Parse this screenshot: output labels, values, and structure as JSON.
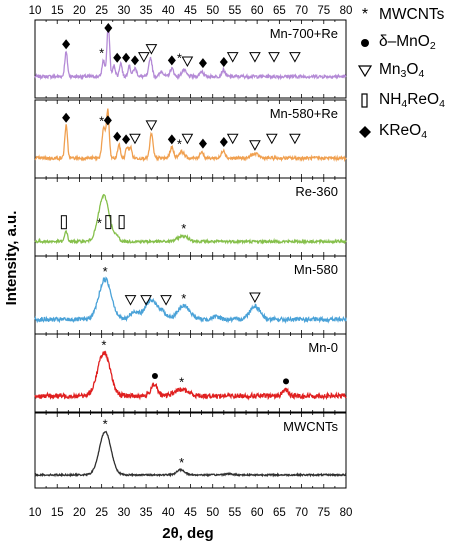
{
  "chart_data": {
    "type": "line",
    "xlabel": "2θ, deg",
    "ylabel": "Intensity, a.u.",
    "xlim": [
      10,
      80
    ],
    "x_ticks": [
      10,
      15,
      20,
      25,
      30,
      35,
      40,
      45,
      50,
      55,
      60,
      65,
      70,
      75,
      80
    ],
    "legend": [
      {
        "symbol": "*",
        "shape": "asterisk",
        "text": "MWCNTs"
      },
      {
        "symbol": "●",
        "shape": "circle",
        "text": "δ–MnO",
        "sub": "2"
      },
      {
        "symbol": "▽",
        "shape": "triangle-down",
        "text": "Mn",
        "sub": "3",
        "text2": "O",
        "sub2": "4"
      },
      {
        "symbol": "▯",
        "shape": "rect",
        "text": "NH",
        "sub": "4",
        "text2": "ReO",
        "sub2": "4"
      },
      {
        "symbol": "◆",
        "shape": "diamond",
        "text": "KReO",
        "sub": "4"
      }
    ],
    "panels": [
      {
        "name": "Mn-700+Re",
        "color": "#b48ad6",
        "baseline": 0.25,
        "noise": 0.03,
        "peaks": [
          [
            17.0,
            0.45,
            0.3
          ],
          [
            25.4,
            0.3,
            0.3
          ],
          [
            26.5,
            0.95,
            0.3
          ],
          [
            27.8,
            0.2,
            0.3
          ],
          [
            29.3,
            0.25,
            0.3
          ],
          [
            31.2,
            0.2,
            0.3
          ],
          [
            32.5,
            0.15,
            0.4
          ],
          [
            36.0,
            0.35,
            0.35
          ],
          [
            38.5,
            0.1,
            0.4
          ],
          [
            40.8,
            0.15,
            0.4
          ],
          [
            43.5,
            0.12,
            0.5
          ],
          [
            47.5,
            0.1,
            0.4
          ],
          [
            52.4,
            0.12,
            0.4
          ]
        ],
        "markers": [
          [
            17,
            "diamond"
          ],
          [
            25,
            "asterisk"
          ],
          [
            26.5,
            "diamond"
          ],
          [
            28.5,
            "diamond"
          ],
          [
            30.5,
            "diamond"
          ],
          [
            32.5,
            "diamond"
          ],
          [
            34.5,
            "triangle-down"
          ],
          [
            36.2,
            "triangle-down"
          ],
          [
            40.8,
            "diamond"
          ],
          [
            42.5,
            "asterisk"
          ],
          [
            44.3,
            "triangle-down"
          ],
          [
            47.8,
            "diamond"
          ],
          [
            52.5,
            "diamond"
          ],
          [
            54.5,
            "triangle-down"
          ],
          [
            59.5,
            "triangle-down"
          ],
          [
            63.8,
            "triangle-down"
          ],
          [
            68.5,
            "triangle-down"
          ]
        ]
      },
      {
        "name": "Mn-580+Re",
        "color": "#f0a050",
        "baseline": 0.22,
        "noise": 0.03,
        "peaks": [
          [
            17.0,
            0.6,
            0.3
          ],
          [
            25.5,
            0.55,
            0.4
          ],
          [
            26.4,
            0.85,
            0.3
          ],
          [
            28.9,
            0.25,
            0.3
          ],
          [
            30.7,
            0.2,
            0.3
          ],
          [
            31.5,
            0.2,
            0.3
          ],
          [
            36.2,
            0.45,
            0.35
          ],
          [
            40.8,
            0.2,
            0.4
          ],
          [
            43.0,
            0.12,
            0.6
          ],
          [
            47.5,
            0.12,
            0.4
          ],
          [
            52.4,
            0.15,
            0.4
          ],
          [
            59.5,
            0.08,
            0.8
          ]
        ],
        "markers": [
          [
            17,
            "diamond"
          ],
          [
            25,
            "asterisk"
          ],
          [
            26.4,
            "diamond"
          ],
          [
            28.5,
            "diamond"
          ],
          [
            30.5,
            "diamond"
          ],
          [
            32.5,
            "triangle-down"
          ],
          [
            36.2,
            "triangle-down"
          ],
          [
            40.8,
            "diamond"
          ],
          [
            42.5,
            "asterisk"
          ],
          [
            44.3,
            "triangle-down"
          ],
          [
            47.8,
            "diamond"
          ],
          [
            52.5,
            "diamond"
          ],
          [
            54.5,
            "triangle-down"
          ],
          [
            59.5,
            "triangle-down"
          ],
          [
            63.3,
            "triangle-down"
          ],
          [
            68.5,
            "triangle-down"
          ]
        ]
      },
      {
        "name": "Re-360",
        "color": "#86c04c",
        "baseline": 0.12,
        "noise": 0.025,
        "peaks": [
          [
            17.0,
            0.2,
            0.3
          ],
          [
            25.5,
            0.85,
            1.2
          ],
          [
            43.3,
            0.1,
            1.2
          ],
          [
            28.5,
            0.08,
            0.5
          ]
        ],
        "markers": [
          [
            16.5,
            "rect"
          ],
          [
            24.5,
            "asterisk"
          ],
          [
            26.5,
            "rect"
          ],
          [
            29.5,
            "rect"
          ],
          [
            43.5,
            "asterisk"
          ]
        ]
      },
      {
        "name": "Mn-580",
        "color": "#4aa2d8",
        "baseline": 0.12,
        "noise": 0.04,
        "peaks": [
          [
            25.8,
            0.75,
            1.4
          ],
          [
            32.5,
            0.15,
            1.0
          ],
          [
            36.0,
            0.35,
            1.2
          ],
          [
            38.5,
            0.15,
            1.0
          ],
          [
            43.5,
            0.25,
            1.4
          ],
          [
            59.5,
            0.25,
            1.2
          ],
          [
            50.8,
            0.05,
            1.0
          ]
        ],
        "markers": [
          [
            25.8,
            "asterisk"
          ],
          [
            31.5,
            "triangle-down"
          ],
          [
            35.0,
            "triangle-down"
          ],
          [
            39.5,
            "triangle-down"
          ],
          [
            43.5,
            "asterisk"
          ],
          [
            59.5,
            "triangle-down"
          ]
        ]
      },
      {
        "name": "Mn-0",
        "color": "#e02020",
        "baseline": 0.15,
        "noise": 0.045,
        "peaks": [
          [
            25.5,
            0.8,
            1.4
          ],
          [
            36.8,
            0.22,
            0.7
          ],
          [
            43.0,
            0.12,
            1.5
          ],
          [
            66.3,
            0.12,
            0.6
          ]
        ],
        "markers": [
          [
            25.5,
            "asterisk"
          ],
          [
            37.0,
            "circle"
          ],
          [
            43.0,
            "asterisk"
          ],
          [
            66.5,
            "circle"
          ]
        ]
      },
      {
        "name": "MWCNTs",
        "color": "#303030",
        "baseline": 0.1,
        "noise": 0.015,
        "peaks": [
          [
            25.8,
            0.85,
            1.3
          ],
          [
            42.8,
            0.1,
            0.9
          ],
          [
            53.5,
            0.02,
            1.0
          ]
        ],
        "markers": [
          [
            25.8,
            "asterisk"
          ],
          [
            43.0,
            "asterisk"
          ]
        ]
      }
    ]
  }
}
